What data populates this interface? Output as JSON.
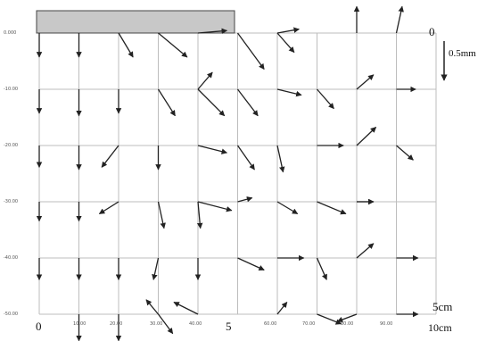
{
  "left_ticks": [
    "0.000",
    "-10.00",
    "-20.00",
    "-30.00",
    "-40.00",
    "-50.00"
  ],
  "bottom_ticks": [
    "10.00",
    "20.00",
    "30.00",
    "40.00",
    "60.00",
    "70.00",
    "80.00",
    "90.00"
  ],
  "annotations": {
    "x_start": "0",
    "x_mid": "5",
    "x_end": "10cm",
    "y_top": "0",
    "y_bottom": "5cm",
    "scale": "0.5mm"
  },
  "colors": {
    "grid": "#bdbdbd",
    "arrow": "#222222",
    "plate": "#c8c8c8"
  },
  "vectors": [
    [
      0,
      0,
      0,
      0.5
    ],
    [
      1,
      0,
      0,
      0.5
    ],
    [
      2,
      0,
      0.3,
      0.5
    ],
    [
      3,
      0,
      0.6,
      0.5
    ],
    [
      4,
      0,
      0.6,
      -0.05
    ],
    [
      5,
      0,
      0.55,
      0.75
    ],
    [
      6,
      0,
      0.35,
      0.4
    ],
    [
      6,
      0,
      0.45,
      -0.08
    ],
    [
      8,
      0,
      0,
      -0.55
    ],
    [
      9,
      0,
      0.12,
      -0.55
    ],
    [
      0,
      1,
      0,
      0.5
    ],
    [
      1,
      1,
      0,
      0.55
    ],
    [
      2,
      1,
      0,
      0.5
    ],
    [
      3,
      1,
      0.35,
      0.55
    ],
    [
      4,
      1,
      0.55,
      0.55
    ],
    [
      4,
      1,
      0.3,
      -0.35
    ],
    [
      5,
      1,
      0.42,
      0.55
    ],
    [
      6,
      1,
      0.5,
      0.12
    ],
    [
      7,
      1,
      0.35,
      0.4
    ],
    [
      8,
      1,
      0.35,
      -0.3
    ],
    [
      9,
      1,
      0.4,
      0
    ],
    [
      0,
      2,
      0,
      0.45
    ],
    [
      1,
      2,
      0,
      0.5
    ],
    [
      2,
      2,
      -0.35,
      0.45
    ],
    [
      3,
      2,
      0,
      0.5
    ],
    [
      4,
      2,
      0.6,
      0.15
    ],
    [
      5,
      2,
      0.35,
      0.5
    ],
    [
      6,
      2,
      0.12,
      0.55
    ],
    [
      7,
      2,
      0.55,
      0
    ],
    [
      8,
      2,
      0.4,
      -0.38
    ],
    [
      9,
      2,
      0.35,
      0.3
    ],
    [
      0,
      3,
      0,
      0.4
    ],
    [
      1,
      3,
      0,
      0.4
    ],
    [
      2,
      3,
      -0.4,
      0.25
    ],
    [
      3,
      3,
      0.12,
      0.55
    ],
    [
      4,
      3,
      0.7,
      0.18
    ],
    [
      4,
      3,
      0.05,
      0.55
    ],
    [
      5,
      3,
      0.3,
      -0.08
    ],
    [
      6,
      3,
      0.42,
      0.25
    ],
    [
      7,
      3,
      0.6,
      0.25
    ],
    [
      8,
      3,
      0.35,
      0
    ],
    [
      8,
      3,
      0.35,
      0
    ],
    [
      0,
      4,
      0,
      0.45
    ],
    [
      1,
      4,
      0,
      0.45
    ],
    [
      2,
      4,
      0,
      0.45
    ],
    [
      3,
      4,
      -0.1,
      0.45
    ],
    [
      4,
      4,
      0,
      0.45
    ],
    [
      5,
      4,
      0.55,
      0.25
    ],
    [
      6,
      4,
      0.55,
      0
    ],
    [
      7,
      4,
      0.2,
      0.45
    ],
    [
      8,
      4,
      0.35,
      -0.3
    ],
    [
      9,
      4,
      0.45,
      0
    ],
    [
      1,
      5,
      0,
      0.55
    ],
    [
      2,
      5,
      0,
      0.55
    ],
    [
      3,
      5,
      -0.25,
      -0.3
    ],
    [
      3,
      5,
      0.3,
      0.4
    ],
    [
      4,
      5,
      -0.5,
      -0.25
    ],
    [
      6,
      5,
      0.2,
      -0.25
    ],
    [
      7,
      5,
      0.5,
      0.2
    ],
    [
      8,
      5,
      -0.4,
      0.15
    ],
    [
      9,
      5,
      0.45,
      0
    ]
  ]
}
